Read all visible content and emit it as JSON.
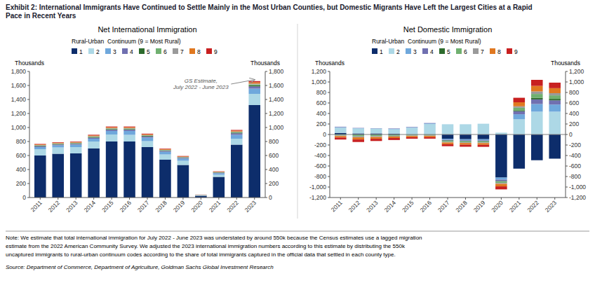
{
  "title": "Exhibit 2: International Immigrants Have Continued to Settle Mainly in the Most Urban Counties, but Domestic Migrants Have Left the Largest Cities at a Rapid\nPace in Recent Years",
  "note": "Note: We estimate that total international immigration for July 2022 - June 2023 was understated by around 550k because the Census estimates use a lagged migration\nestimate from the 2022 American Community Survey. We adjusted the 2023 international immigration numbers according to this estimate by distributing the 550k\nuncaptured immigrants to rural-urban continuum codes according to the share of total immigrants captured in the official data that settled in each county type.",
  "source": "Source: Department of Commerce, Department of Agriculture, Goldman Sachs Global Investment Research",
  "chart_data": [
    {
      "type": "bar",
      "stacked": true,
      "grid": false,
      "legend": "top",
      "title": "Net International Immigration",
      "legend_title": "Rural-Urban  Continuum (9 = Most Rural)",
      "y_label": "Thousands",
      "y2_label": "Thousands",
      "categories": [
        "2011",
        "2012",
        "2013",
        "2014",
        "2015",
        "2016",
        "2017",
        "2018",
        "2019",
        "2020",
        "2021",
        "2022",
        "2023"
      ],
      "series": [
        {
          "name": "1",
          "color": "#0d2d6b",
          "values": [
            600,
            625,
            630,
            700,
            800,
            800,
            720,
            540,
            465,
            25,
            295,
            755,
            1320
          ]
        },
        {
          "name": "2",
          "color": "#add8e6",
          "values": [
            90,
            90,
            90,
            100,
            100,
            95,
            85,
            75,
            60,
            5,
            30,
            85,
            160
          ]
        },
        {
          "name": "3",
          "color": "#6fa8dc",
          "values": [
            30,
            30,
            35,
            40,
            50,
            55,
            50,
            38,
            32,
            3,
            22,
            55,
            75
          ]
        },
        {
          "name": "4",
          "color": "#7070b0",
          "values": [
            12,
            12,
            12,
            15,
            18,
            18,
            16,
            13,
            10,
            2,
            8,
            22,
            32
          ]
        },
        {
          "name": "5",
          "color": "#2d6b2d",
          "values": [
            6,
            6,
            6,
            8,
            9,
            9,
            8,
            6,
            5,
            1,
            4,
            10,
            15
          ]
        },
        {
          "name": "6",
          "color": "#70b070",
          "values": [
            6,
            6,
            6,
            7,
            8,
            8,
            7,
            5,
            4,
            1,
            3,
            8,
            13
          ]
        },
        {
          "name": "7",
          "color": "#9a9a9a",
          "values": [
            5,
            5,
            5,
            6,
            7,
            7,
            6,
            5,
            4,
            1,
            3,
            7,
            11
          ]
        },
        {
          "name": "8",
          "color": "#e07820",
          "values": [
            9,
            9,
            9,
            11,
            12,
            12,
            11,
            9,
            7,
            2,
            5,
            13,
            20
          ]
        },
        {
          "name": "9",
          "color": "#c82020",
          "values": [
            7,
            7,
            7,
            9,
            10,
            10,
            9,
            7,
            6,
            1,
            4,
            10,
            16
          ]
        }
      ],
      "ylim": [
        0,
        1800
      ],
      "yticks": [
        0,
        200,
        400,
        600,
        800,
        {
          "value": 1000,
          "label": "1,000"
        },
        {
          "value": 1200,
          "label": "1,200"
        },
        {
          "value": 1400,
          "label": "1,400"
        },
        {
          "value": 1600,
          "label": "1,600"
        },
        {
          "value": 1800,
          "label": "1,800"
        }
      ],
      "y2lim": [
        0,
        1800
      ],
      "y2ticks": [
        0,
        200,
        400,
        600,
        800,
        {
          "value": 1000,
          "label": "1,000"
        },
        {
          "value": 1200,
          "label": "1,200"
        },
        {
          "value": 1400,
          "label": "1,400"
        },
        {
          "value": 1600,
          "label": "1,600"
        },
        {
          "value": 1800,
          "label": "1,800"
        }
      ],
      "annotations": [
        {
          "text": "GS Estimate,\nJuly 2022 - June 2023",
          "x": "2023"
        }
      ]
    },
    {
      "type": "bar",
      "stacked": true,
      "grid": false,
      "legend": "top",
      "title": "Net Domestic Immigration",
      "legend_title": "Rural-Urban  Continuum (9 = Most Rural)",
      "y_label": "Thousands",
      "y2_label": "Thousands",
      "categories": [
        "2011",
        "2012",
        "2013",
        "2014",
        "2015",
        "2016",
        "2017",
        "2018",
        "2019",
        "2020",
        "2021",
        "2022",
        "2023"
      ],
      "series": [
        {
          "name": "1",
          "color": "#0d2d6b",
          "values": [
            30,
            20,
            20,
            15,
            5,
            5,
            -80,
            -90,
            -90,
            -820,
            -650,
            -490,
            -460
          ]
        },
        {
          "name": "2",
          "color": "#add8e6",
          "values": [
            100,
            95,
            90,
            85,
            125,
            195,
            195,
            195,
            205,
            35,
            290,
            435,
            435
          ]
        },
        {
          "name": "3",
          "color": "#6fa8dc",
          "values": [
            10,
            5,
            5,
            8,
            8,
            10,
            -20,
            -20,
            -22,
            -40,
            95,
            145,
            135
          ]
        },
        {
          "name": "4",
          "color": "#7070b0",
          "values": [
            8,
            5,
            4,
            7,
            7,
            8,
            -15,
            -15,
            -15,
            -28,
            58,
            88,
            80
          ]
        },
        {
          "name": "5",
          "color": "#2d6b2d",
          "values": [
            -5,
            -5,
            -5,
            -5,
            -5,
            -4,
            -5,
            -5,
            -5,
            -10,
            18,
            28,
            28
          ]
        },
        {
          "name": "6",
          "color": "#70b070",
          "values": [
            -15,
            -30,
            -25,
            -20,
            -14,
            -14,
            -20,
            -20,
            -20,
            -24,
            48,
            76,
            67
          ]
        },
        {
          "name": "7",
          "color": "#9a9a9a",
          "values": [
            -10,
            -20,
            -18,
            -14,
            -9,
            -9,
            -12,
            -12,
            -12,
            -18,
            28,
            48,
            42
          ]
        },
        {
          "name": "8",
          "color": "#e07820",
          "values": [
            -28,
            -40,
            -34,
            -28,
            -24,
            -24,
            -33,
            -33,
            -33,
            -48,
            76,
            105,
            95
          ]
        },
        {
          "name": "9",
          "color": "#c82020",
          "values": [
            -38,
            -48,
            -42,
            -38,
            -28,
            -28,
            -38,
            -38,
            -38,
            -57,
            86,
            115,
            105
          ]
        }
      ],
      "ylim": [
        -1200,
        1200
      ],
      "yticks": [
        {
          "value": -1200,
          "label": "-1,200"
        },
        {
          "value": -1000,
          "label": "-1,000"
        },
        -800,
        -600,
        -400,
        -200,
        0,
        200,
        400,
        600,
        800,
        {
          "value": 1000,
          "label": "1,000"
        },
        {
          "value": 1200,
          "label": "1,200"
        }
      ],
      "y2lim": [
        -1200,
        1200
      ],
      "y2ticks": [
        {
          "value": -1200,
          "label": "-1,200"
        },
        {
          "value": -1000,
          "label": "-1,000"
        },
        -800,
        -600,
        -400,
        -200,
        0,
        200,
        400,
        600,
        800,
        {
          "value": 1000,
          "label": "1,000"
        },
        {
          "value": 1200,
          "label": "1,200"
        }
      ]
    }
  ]
}
